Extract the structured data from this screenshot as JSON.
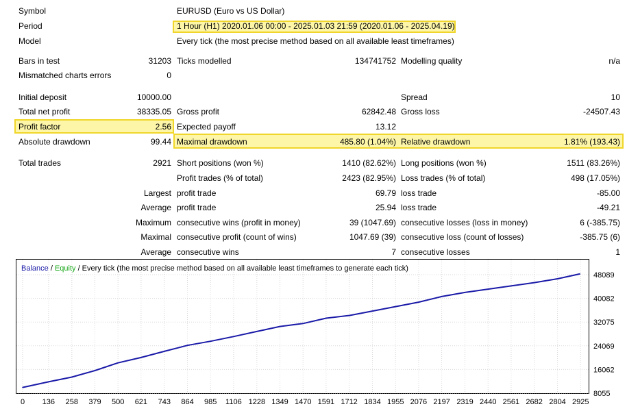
{
  "report": {
    "symbol_label": "Symbol",
    "symbol_value": "EURUSD (Euro vs US Dollar)",
    "period_label": "Period",
    "period_value": "1 Hour (H1) 2020.01.06 00:00 - 2025.01.03 21:59 (2020.01.06 - 2025.04.19)",
    "model_label": "Model",
    "model_value": "Every tick (the most precise method based on all available least timeframes)",
    "bars_label": "Bars in test",
    "bars_value": "31203",
    "ticks_label": "Ticks modelled",
    "ticks_value": "134741752",
    "quality_label": "Modelling quality",
    "quality_value": "n/a",
    "mismatch_label": "Mismatched charts errors",
    "mismatch_value": "0",
    "deposit_label": "Initial deposit",
    "deposit_value": "10000.00",
    "spread_label": "Spread",
    "spread_value": "10",
    "netprofit_label": "Total net profit",
    "netprofit_value": "38335.05",
    "grossprofit_label": "Gross profit",
    "grossprofit_value": "62842.48",
    "grossloss_label": "Gross loss",
    "grossloss_value": "-24507.43",
    "pf_label": "Profit factor",
    "pf_value": "2.56",
    "payoff_label": "Expected payoff",
    "payoff_value": "13.12",
    "absdd_label": "Absolute drawdown",
    "absdd_value": "99.44",
    "maxdd_label": "Maximal drawdown",
    "maxdd_value": "485.80 (1.04%)",
    "reldd_label": "Relative drawdown",
    "reldd_value": "1.81% (193.43)",
    "trades_label": "Total trades",
    "trades_value": "2921",
    "short_label": "Short positions (won %)",
    "short_value": "1410 (82.62%)",
    "long_label": "Long positions (won %)",
    "long_value": "1511 (83.26%)",
    "profit_trades_label": "Profit trades (% of total)",
    "profit_trades_value": "2423 (82.95%)",
    "loss_trades_label": "Loss trades (% of total)",
    "loss_trades_value": "498 (17.05%)",
    "largest_label": "Largest",
    "largest_profit_label": "profit trade",
    "largest_profit_value": "69.79",
    "largest_loss_label": "loss trade",
    "largest_loss_value": "-85.00",
    "average_label": "Average",
    "average_profit_label": "profit trade",
    "average_profit_value": "25.94",
    "average_loss_label": "loss trade",
    "average_loss_value": "-49.21",
    "maximum_label": "Maximum",
    "max_cons_wins_label": "consecutive wins (profit in money)",
    "max_cons_wins_value": "39 (1047.69)",
    "max_cons_losses_label": "consecutive losses (loss in money)",
    "max_cons_losses_value": "6 (-385.75)",
    "maximal_label": "Maximal",
    "maximal_profit_label": "consecutive profit (count of wins)",
    "maximal_profit_value": "1047.69 (39)",
    "maximal_loss_label": "consecutive loss (count of losses)",
    "maximal_loss_value": "-385.75 (6)",
    "average2_label": "Average",
    "avg_cons_wins_label": "consecutive wins",
    "avg_cons_wins_value": "7",
    "avg_cons_losses_label": "consecutive losses",
    "avg_cons_losses_value": "1"
  },
  "colors": {
    "highlight_fill": "#fdf6a8",
    "highlight_border": "#f0d62a",
    "balance_line": "#1a1aa8",
    "equity_text": "#1aa81a",
    "grid": "#d9d9d9"
  },
  "chart_data": {
    "type": "line",
    "legend": {
      "balance": "Balance",
      "sep1": " / ",
      "equity": "Equity",
      "rest": " / Every tick (the most precise method based on all available least timeframes to generate each tick)"
    },
    "x_ticks": [
      0,
      136,
      258,
      379,
      500,
      621,
      743,
      864,
      985,
      1106,
      1228,
      1349,
      1470,
      1591,
      1712,
      1834,
      1955,
      2076,
      2197,
      2319,
      2440,
      2561,
      2682,
      2804,
      2925
    ],
    "y_ticks": [
      8055,
      16062,
      24069,
      32075,
      40082,
      48089
    ],
    "xlim": [
      0,
      2960
    ],
    "ylim": [
      8055,
      48089
    ],
    "grid": true,
    "series": [
      {
        "name": "Balance",
        "x": [
          0,
          136,
          258,
          379,
          500,
          621,
          743,
          864,
          985,
          1106,
          1228,
          1349,
          1470,
          1591,
          1712,
          1834,
          1955,
          2076,
          2197,
          2319,
          2440,
          2561,
          2682,
          2804,
          2921
        ],
        "values": [
          10000,
          11900,
          13500,
          15700,
          18300,
          20100,
          22200,
          24200,
          25600,
          27200,
          28900,
          30600,
          31600,
          33400,
          34300,
          35800,
          37300,
          38800,
          40700,
          42100,
          43200,
          44300,
          45400,
          46700,
          48335
        ]
      }
    ]
  }
}
